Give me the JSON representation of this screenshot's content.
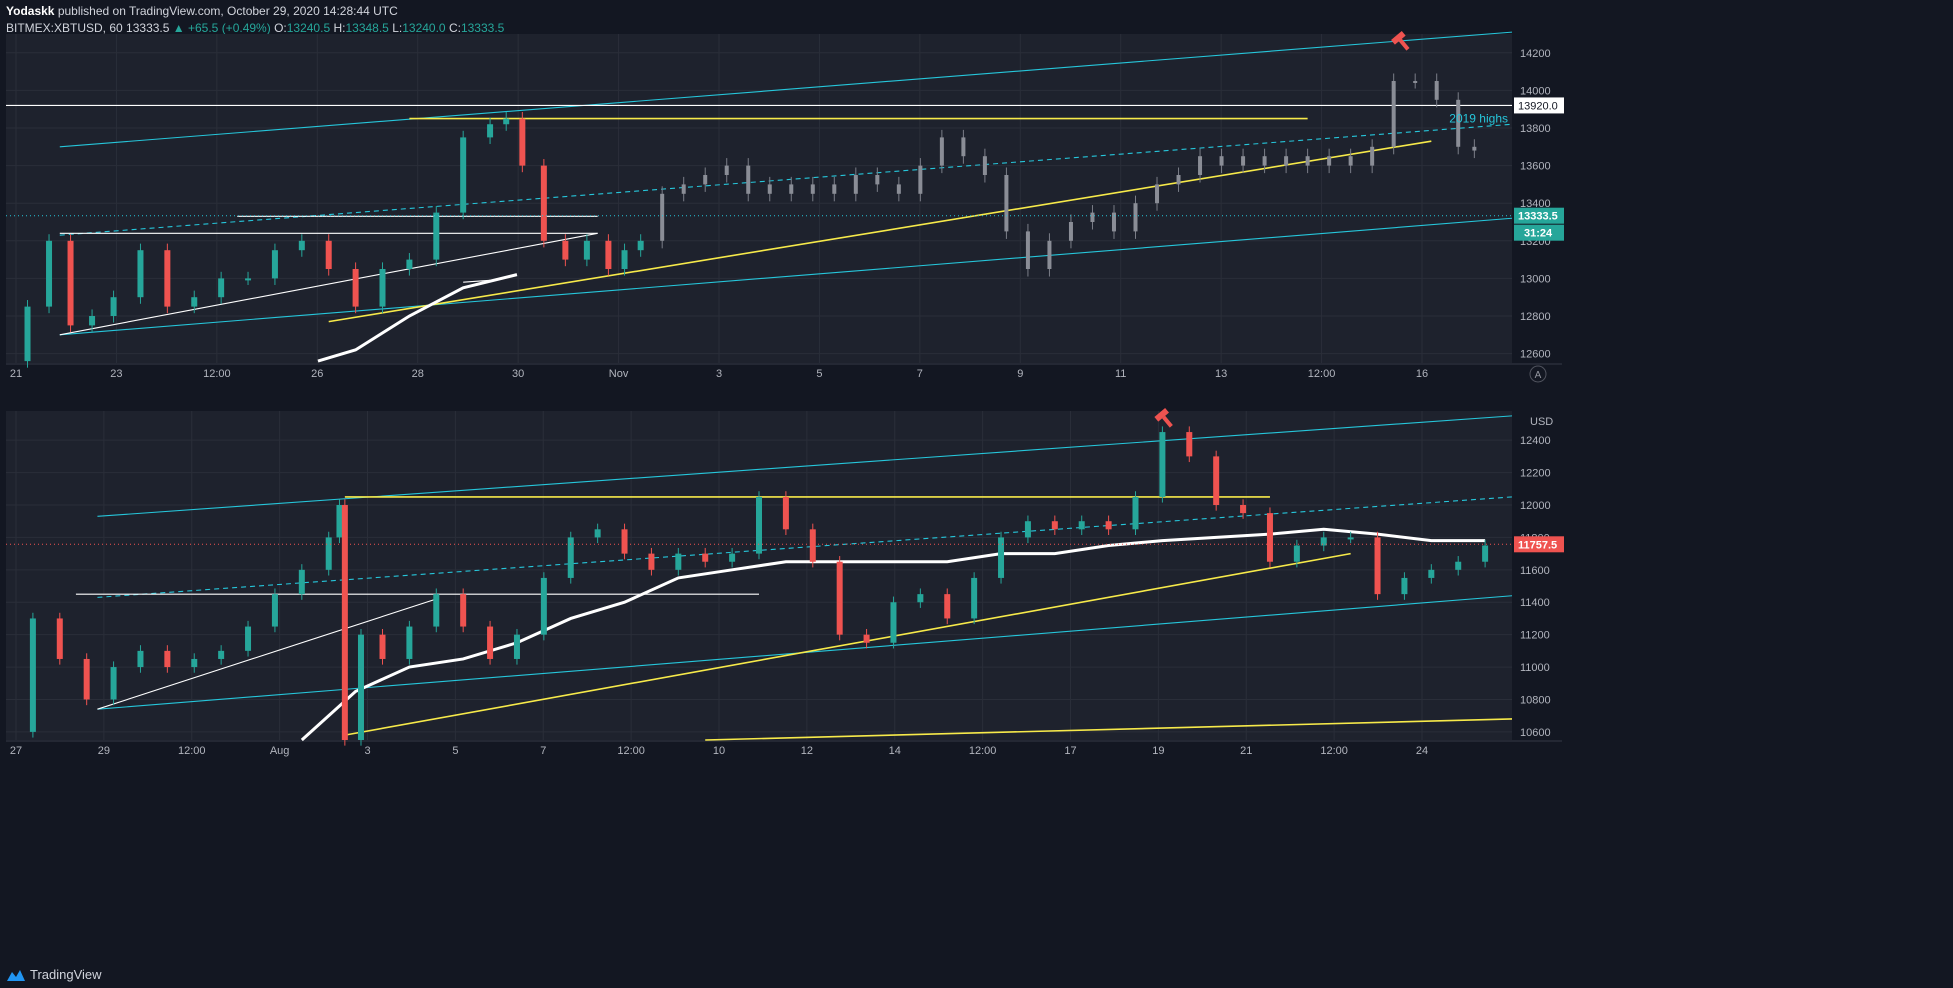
{
  "publish": {
    "author": "Yodaskk",
    "text": "published on TradingView.com, October 29, 2020 14:28:44 UTC"
  },
  "legend": {
    "symbol": "BITMEX:XBTUSD, 60",
    "last": "13333.5",
    "change": "▲ +65.5 (+0.49%)",
    "o_label": "O:",
    "o": "13240.5",
    "h_label": "H:",
    "h": "13348.5",
    "l_label": "L:",
    "l": "13240.0",
    "c_label": "C:",
    "c": "13333.5"
  },
  "footer": {
    "brand": "TradingView"
  },
  "colors": {
    "bg": "#131722",
    "pane": "#1e222d",
    "teal": "#26c6da",
    "yellow": "#f7ea4a",
    "up": "#26a69a",
    "down": "#ef5350",
    "gray": "#9598a1"
  },
  "chart_data": [
    {
      "type": "line",
      "pane": "top",
      "ylim": [
        12550,
        14300
      ],
      "yticks": [
        12600,
        12800,
        13000,
        13200,
        13400,
        13600,
        13800,
        14000,
        14200
      ],
      "xticks": [
        "21",
        "23",
        "12:00",
        "26",
        "28",
        "30",
        "Nov",
        "3",
        "5",
        "7",
        "9",
        "11",
        "13",
        "12:00",
        "16"
      ],
      "price_label": "13333.5",
      "countdown": "31:24",
      "level_label": "13920.0",
      "annotation": "2019 highs",
      "corner_button": "A",
      "price_path": [
        [
          0,
          12560
        ],
        [
          0.4,
          12850
        ],
        [
          0.8,
          13200
        ],
        [
          1.2,
          12750
        ],
        [
          1.6,
          12800
        ],
        [
          2,
          12900
        ],
        [
          2.5,
          13150
        ],
        [
          3,
          12850
        ],
        [
          3.5,
          12900
        ],
        [
          4,
          13000
        ],
        [
          4.5,
          13000
        ],
        [
          5,
          13150
        ],
        [
          5.5,
          13200
        ],
        [
          6,
          13050
        ],
        [
          6.5,
          12850
        ],
        [
          7,
          13050
        ],
        [
          7.5,
          13100
        ],
        [
          8,
          13350
        ],
        [
          8.5,
          13750
        ],
        [
          9,
          13820
        ],
        [
          9.3,
          13850
        ],
        [
          9.6,
          13600
        ],
        [
          10,
          13200
        ],
        [
          10.4,
          13100
        ],
        [
          10.8,
          13200
        ],
        [
          11.2,
          13050
        ],
        [
          11.5,
          13150
        ],
        [
          11.8,
          13200
        ]
      ],
      "ghost_path": [
        [
          11.8,
          13200
        ],
        [
          12.2,
          13450
        ],
        [
          12.6,
          13500
        ],
        [
          13,
          13550
        ],
        [
          13.4,
          13600
        ],
        [
          13.8,
          13450
        ],
        [
          14.2,
          13500
        ],
        [
          14.6,
          13450
        ],
        [
          15,
          13500
        ],
        [
          15.4,
          13450
        ],
        [
          15.8,
          13550
        ],
        [
          16.2,
          13500
        ],
        [
          16.6,
          13450
        ],
        [
          17,
          13600
        ],
        [
          17.4,
          13750
        ],
        [
          17.8,
          13650
        ],
        [
          18.2,
          13550
        ],
        [
          18.6,
          13250
        ],
        [
          19,
          13050
        ],
        [
          19.4,
          13200
        ],
        [
          19.8,
          13300
        ],
        [
          20.2,
          13350
        ],
        [
          20.6,
          13250
        ],
        [
          21,
          13400
        ],
        [
          21.4,
          13500
        ],
        [
          21.8,
          13550
        ],
        [
          22.2,
          13650
        ],
        [
          22.6,
          13600
        ],
        [
          23,
          13650
        ],
        [
          23.4,
          13600
        ],
        [
          23.8,
          13650
        ],
        [
          24.2,
          13600
        ],
        [
          24.6,
          13650
        ],
        [
          25,
          13600
        ],
        [
          25.4,
          13700
        ],
        [
          25.8,
          14050
        ],
        [
          26.2,
          14050
        ],
        [
          26.6,
          13950
        ],
        [
          27,
          13700
        ],
        [
          27.3,
          13680
        ]
      ],
      "lines": [
        {
          "color": "teal",
          "from": [
            1,
            13700
          ],
          "to": [
            28,
            14310
          ]
        },
        {
          "color": "teal",
          "from": [
            1,
            12700
          ],
          "to": [
            28,
            13320
          ]
        },
        {
          "color": "teal",
          "dash": true,
          "from": [
            1,
            13230
          ],
          "to": [
            28,
            13820
          ]
        },
        {
          "color": "yellow",
          "from": [
            7.5,
            13850
          ],
          "to": [
            24.2,
            13850
          ]
        },
        {
          "color": "yellow",
          "from": [
            6,
            12770
          ],
          "to": [
            26.5,
            13730
          ]
        },
        {
          "color": "white",
          "from": [
            0,
            13920
          ],
          "to": [
            28,
            13920
          ]
        },
        {
          "color": "white",
          "from": [
            1,
            13240
          ],
          "to": [
            11,
            13240
          ]
        },
        {
          "color": "white",
          "from": [
            4.3,
            13330
          ],
          "to": [
            11,
            13330
          ]
        },
        {
          "color": "white",
          "from": [
            1,
            12700
          ],
          "to": [
            11,
            13240
          ]
        },
        {
          "color": "white",
          "from": [
            8.5,
            12980
          ],
          "to": [
            9,
            12990
          ]
        }
      ],
      "ma_path": [
        [
          5.8,
          12560
        ],
        [
          6.5,
          12620
        ],
        [
          7.5,
          12800
        ],
        [
          8.5,
          12950
        ],
        [
          9.5,
          13020
        ]
      ]
    },
    {
      "type": "line",
      "pane": "bottom",
      "ylim": [
        10550,
        12580
      ],
      "yticks": [
        10600,
        10800,
        11000,
        11200,
        11400,
        11600,
        11800,
        12000,
        12200,
        12400
      ],
      "xticks": [
        "27",
        "29",
        "12:00",
        "Aug",
        "3",
        "5",
        "7",
        "12:00",
        "10",
        "12",
        "14",
        "12:00",
        "17",
        "19",
        "21",
        "12:00",
        "24"
      ],
      "price_label": "11757.5",
      "currency": "USD",
      "price_path": [
        [
          0,
          10600
        ],
        [
          0.5,
          11300
        ],
        [
          1,
          11050
        ],
        [
          1.5,
          10800
        ],
        [
          2,
          11000
        ],
        [
          2.5,
          11100
        ],
        [
          3,
          11000
        ],
        [
          3.5,
          11050
        ],
        [
          4,
          11100
        ],
        [
          4.5,
          11250
        ],
        [
          5,
          11450
        ],
        [
          5.5,
          11600
        ],
        [
          6,
          11800
        ],
        [
          6.2,
          12000
        ],
        [
          6.3,
          10550
        ],
        [
          6.6,
          11200
        ],
        [
          7,
          11050
        ],
        [
          7.5,
          11250
        ],
        [
          8,
          11450
        ],
        [
          8.5,
          11250
        ],
        [
          9,
          11050
        ],
        [
          9.5,
          11200
        ],
        [
          10,
          11550
        ],
        [
          10.5,
          11800
        ],
        [
          11,
          11850
        ],
        [
          11.5,
          11700
        ],
        [
          12,
          11600
        ],
        [
          12.5,
          11700
        ],
        [
          13,
          11650
        ],
        [
          13.5,
          11700
        ],
        [
          14,
          12050
        ],
        [
          14.5,
          11850
        ],
        [
          15,
          11650
        ],
        [
          15.5,
          11200
        ],
        [
          16,
          11150
        ],
        [
          16.5,
          11400
        ],
        [
          17,
          11450
        ],
        [
          17.5,
          11300
        ],
        [
          18,
          11550
        ],
        [
          18.5,
          11800
        ],
        [
          19,
          11900
        ],
        [
          19.5,
          11850
        ],
        [
          20,
          11900
        ],
        [
          20.5,
          11850
        ],
        [
          21,
          12050
        ],
        [
          21.5,
          12450
        ],
        [
          22,
          12300
        ],
        [
          22.5,
          12000
        ],
        [
          23,
          11950
        ],
        [
          23.5,
          11650
        ],
        [
          24,
          11750
        ],
        [
          24.5,
          11800
        ],
        [
          25,
          11800
        ],
        [
          25.5,
          11450
        ],
        [
          26,
          11550
        ],
        [
          26.5,
          11600
        ],
        [
          27,
          11650
        ],
        [
          27.5,
          11750
        ]
      ],
      "lines": [
        {
          "color": "teal",
          "from": [
            1.7,
            11930
          ],
          "to": [
            28,
            12550
          ]
        },
        {
          "color": "teal",
          "from": [
            1.7,
            10740
          ],
          "to": [
            28,
            11440
          ]
        },
        {
          "color": "teal",
          "dash": true,
          "from": [
            1.7,
            11430
          ],
          "to": [
            28,
            12050
          ]
        },
        {
          "color": "yellow",
          "from": [
            6.3,
            12050
          ],
          "to": [
            23.5,
            12050
          ]
        },
        {
          "color": "yellow",
          "from": [
            6.3,
            10580
          ],
          "to": [
            25,
            11700
          ]
        },
        {
          "color": "yellow",
          "from": [
            13,
            10550
          ],
          "to": [
            28,
            10680
          ]
        },
        {
          "color": "white",
          "from": [
            1.3,
            11450
          ],
          "to": [
            14,
            11450
          ]
        },
        {
          "color": "white",
          "from": [
            1.7,
            10740
          ],
          "to": [
            8,
            11420
          ]
        }
      ],
      "ma_path": [
        [
          5.5,
          10550
        ],
        [
          6.5,
          10850
        ],
        [
          7.5,
          11000
        ],
        [
          8.5,
          11050
        ],
        [
          9.5,
          11150
        ],
        [
          10.5,
          11300
        ],
        [
          11.5,
          11400
        ],
        [
          12.5,
          11550
        ],
        [
          13.5,
          11600
        ],
        [
          14.5,
          11650
        ],
        [
          15.5,
          11650
        ],
        [
          16.5,
          11650
        ],
        [
          17.5,
          11650
        ],
        [
          18.5,
          11700
        ],
        [
          19.5,
          11700
        ],
        [
          20.5,
          11750
        ],
        [
          21.5,
          11780
        ],
        [
          22.5,
          11800
        ],
        [
          23.5,
          11820
        ],
        [
          24.5,
          11850
        ],
        [
          25.5,
          11820
        ],
        [
          26.5,
          11780
        ],
        [
          27.5,
          11780
        ]
      ]
    }
  ]
}
